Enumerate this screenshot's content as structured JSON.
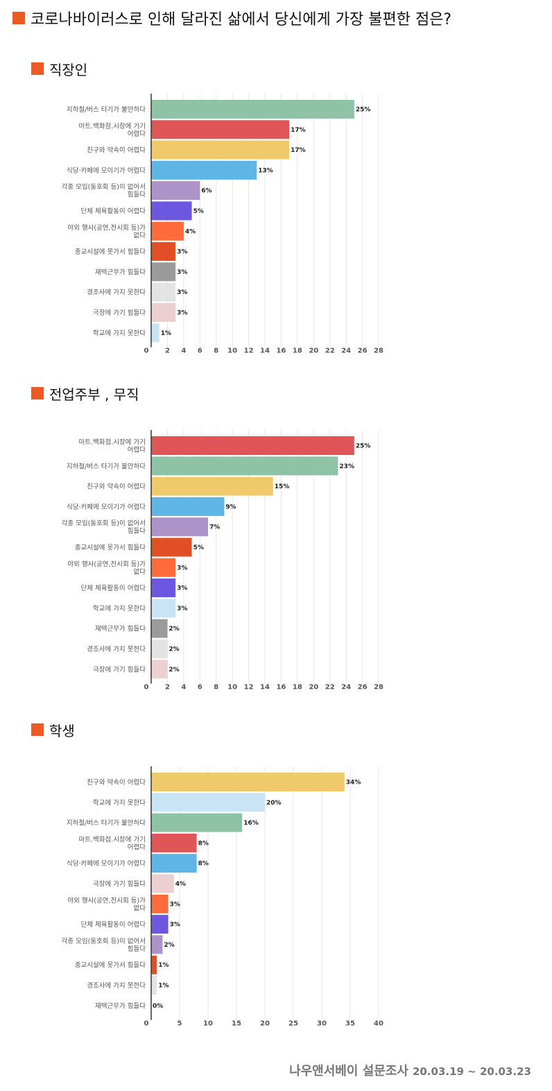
{
  "page": {
    "title": "코로나바이러스로 인해 달라진 삶에서 당신에게 가장 불편한 점은?",
    "footer_brand": "나우앤서베이 설문조사",
    "footer_date": "20.03.19 ~ 20.03.23",
    "accent_color": "#ee5a24"
  },
  "chart_data": [
    {
      "type": "bar",
      "orientation": "horizontal",
      "title": "직장인",
      "xlim": [
        0,
        28
      ],
      "xticks": [
        0,
        2,
        4,
        6,
        8,
        10,
        12,
        14,
        16,
        18,
        20,
        22,
        24,
        26,
        28
      ],
      "grid": true,
      "bars": [
        {
          "label": "지하철/버스 타기가 불안하다",
          "value": 25,
          "display": "25%",
          "color": "#8fc3a5"
        },
        {
          "label": "마트.백화점.시장에 가기 어렵다",
          "value": 17,
          "display": "17%",
          "color": "#df5558"
        },
        {
          "label": "친구와 약속이 어렵다",
          "value": 17,
          "display": "17%",
          "color": "#f0ca6a"
        },
        {
          "label": "식당·카페에 모이기가 어렵다",
          "value": 13,
          "display": "13%",
          "color": "#5fb5e6"
        },
        {
          "label": "각종 모임(동호회 등)이 없어서 힘들다",
          "value": 6,
          "display": "6%",
          "color": "#ac93c8"
        },
        {
          "label": "단체 체육활동이 어렵다",
          "value": 5,
          "display": "5%",
          "color": "#6e57e0"
        },
        {
          "label": "야외 행사(공연,전시회 등)가 없다",
          "value": 4,
          "display": "4%",
          "color": "#ff6b3b"
        },
        {
          "label": "종교시설에 못가서 힘들다",
          "value": 3,
          "display": "3%",
          "color": "#e24e25"
        },
        {
          "label": "재택근무가 힘들다",
          "value": 3,
          "display": "3%",
          "color": "#9b9b9b"
        },
        {
          "label": "경조사에 가지 못한다",
          "value": 3,
          "display": "3%",
          "color": "#e3e3e3"
        },
        {
          "label": "극장에 가기 힘들다",
          "value": 3,
          "display": "3%",
          "color": "#eccfd1"
        },
        {
          "label": "학교에 가지 못한다",
          "value": 1,
          "display": "1%",
          "color": "#c9e5f5"
        }
      ]
    },
    {
      "type": "bar",
      "orientation": "horizontal",
      "title": "전업주부 , 무직",
      "xlim": [
        0,
        28
      ],
      "xticks": [
        0,
        2,
        4,
        6,
        8,
        10,
        12,
        14,
        16,
        18,
        20,
        22,
        24,
        26,
        28
      ],
      "grid": true,
      "bars": [
        {
          "label": "마트.백화점.시장에 가기 어렵다",
          "value": 25,
          "display": "25%",
          "color": "#df5558"
        },
        {
          "label": "지하철/버스 타기가 불안하다",
          "value": 23,
          "display": "23%",
          "color": "#8fc3a5"
        },
        {
          "label": "친구와 약속이 어렵다",
          "value": 15,
          "display": "15%",
          "color": "#f0ca6a"
        },
        {
          "label": "식당·카페에 모이기가 어렵다",
          "value": 9,
          "display": "9%",
          "color": "#5fb5e6"
        },
        {
          "label": "각종 모임(동호회 등)이 없어서 힘들다",
          "value": 7,
          "display": "7%",
          "color": "#ac93c8"
        },
        {
          "label": "종교시설에 못가서 힘들다",
          "value": 5,
          "display": "5%",
          "color": "#e24e25"
        },
        {
          "label": "야외 행사(공연,전시회 등)가 없다",
          "value": 3,
          "display": "3%",
          "color": "#ff6b3b"
        },
        {
          "label": "단체 체육활동이 어렵다",
          "value": 3,
          "display": "3%",
          "color": "#6e57e0"
        },
        {
          "label": "학교에 가지 못한다",
          "value": 3,
          "display": "3%",
          "color": "#c9e5f5"
        },
        {
          "label": "재택근무가 힘들다",
          "value": 2,
          "display": "2%",
          "color": "#9b9b9b"
        },
        {
          "label": "경조사에 가지 못한다",
          "value": 2,
          "display": "2%",
          "color": "#e3e3e3"
        },
        {
          "label": "극장에 가기 힘들다",
          "value": 2,
          "display": "2%",
          "color": "#eccfd1"
        }
      ]
    },
    {
      "type": "bar",
      "orientation": "horizontal",
      "title": "학생",
      "xlim": [
        0,
        40
      ],
      "xticks": [
        0,
        5,
        10,
        15,
        20,
        25,
        30,
        35,
        40
      ],
      "grid": true,
      "bars": [
        {
          "label": "친구와 약속이 어렵다",
          "value": 34,
          "display": "34%",
          "color": "#f0ca6a"
        },
        {
          "label": "학교에 가지 못한다",
          "value": 20,
          "display": "20%",
          "color": "#c9e5f5"
        },
        {
          "label": "지하철/버스 타기가 불안하다",
          "value": 16,
          "display": "16%",
          "color": "#8fc3a5"
        },
        {
          "label": "마트.백화점.시장에 가기 어렵다",
          "value": 8,
          "display": "8%",
          "color": "#df5558"
        },
        {
          "label": "식당·카페에 모이기가 어렵다",
          "value": 8,
          "display": "8%",
          "color": "#5fb5e6"
        },
        {
          "label": "극장에 가기 힘들다",
          "value": 4,
          "display": "4%",
          "color": "#eccfd1"
        },
        {
          "label": "야외 행사(공연,전시회 등)가 없다",
          "value": 3,
          "display": "3%",
          "color": "#ff6b3b"
        },
        {
          "label": "단체 체육활동이 어렵다",
          "value": 3,
          "display": "3%",
          "color": "#6e57e0"
        },
        {
          "label": "각종 모임(동호회 등)이 없어서 힘들다",
          "value": 2,
          "display": "2%",
          "color": "#ac93c8"
        },
        {
          "label": "종교시설에 못가서 힘들다",
          "value": 1,
          "display": "1%",
          "color": "#e24e25"
        },
        {
          "label": "경조사에 가지 못한다",
          "value": 1,
          "display": "1%",
          "color": "#e3e3e3"
        },
        {
          "label": "재택근무가 힘들다",
          "value": 0,
          "display": "0%",
          "color": "#9b9b9b"
        }
      ]
    }
  ]
}
